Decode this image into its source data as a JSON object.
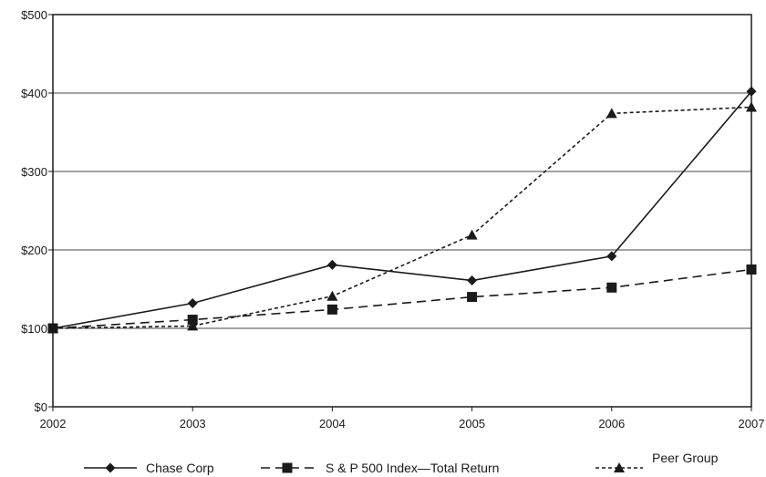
{
  "chart_data": {
    "type": "line",
    "x": [
      "2002",
      "2003",
      "2004",
      "2005",
      "2006",
      "2007"
    ],
    "y_ticks": [
      "$0",
      "$100",
      "$200",
      "$300",
      "$400",
      "$500"
    ],
    "ylim": [
      0,
      500
    ],
    "grid": "horizontal",
    "legend_position": "bottom",
    "series": [
      {
        "name": "Chase Corp",
        "values": [
          100,
          132,
          181,
          161,
          192,
          402
        ],
        "marker": "diamond",
        "line": "solid"
      },
      {
        "name": "S & P 500 Index—Total Return",
        "values": [
          100,
          111,
          124,
          140,
          152,
          175
        ],
        "marker": "square",
        "line": "dashed"
      },
      {
        "name": "Peer Group",
        "values": [
          100,
          103,
          141,
          219,
          374,
          382
        ],
        "marker": "triangle",
        "line": "dotted"
      }
    ]
  }
}
